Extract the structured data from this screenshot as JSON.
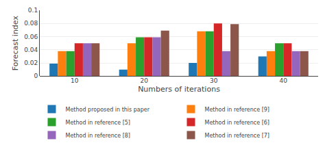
{
  "chart_data": {
    "type": "bar",
    "xlabel": "Numbers of iterations",
    "ylabel": "Forecast index",
    "categories": [
      10,
      20,
      30,
      40
    ],
    "series": [
      {
        "name": "Method proposed in this paper",
        "values": [
          0.019,
          0.01,
          0.02,
          0.03
        ]
      },
      {
        "name": "Method in reference [9]",
        "values": [
          0.038,
          0.05,
          0.068,
          0.038
        ]
      },
      {
        "name": "Method in reference [5]",
        "values": [
          0.038,
          0.059,
          0.068,
          0.05
        ]
      },
      {
        "name": "Method in reference [6]",
        "values": [
          0.05,
          0.059,
          0.08,
          0.05
        ]
      },
      {
        "name": "Method in reference [8]",
        "values": [
          0.05,
          0.059,
          0.038,
          0.038
        ]
      },
      {
        "name": "Method in reference [7]",
        "values": [
          0.05,
          0.069,
          0.079,
          0.038
        ]
      }
    ],
    "ylim": [
      0,
      0.1
    ],
    "yticks": [
      0,
      0.02,
      0.04,
      0.06,
      0.08,
      0.1
    ],
    "grid": true,
    "legend": "bottom"
  }
}
